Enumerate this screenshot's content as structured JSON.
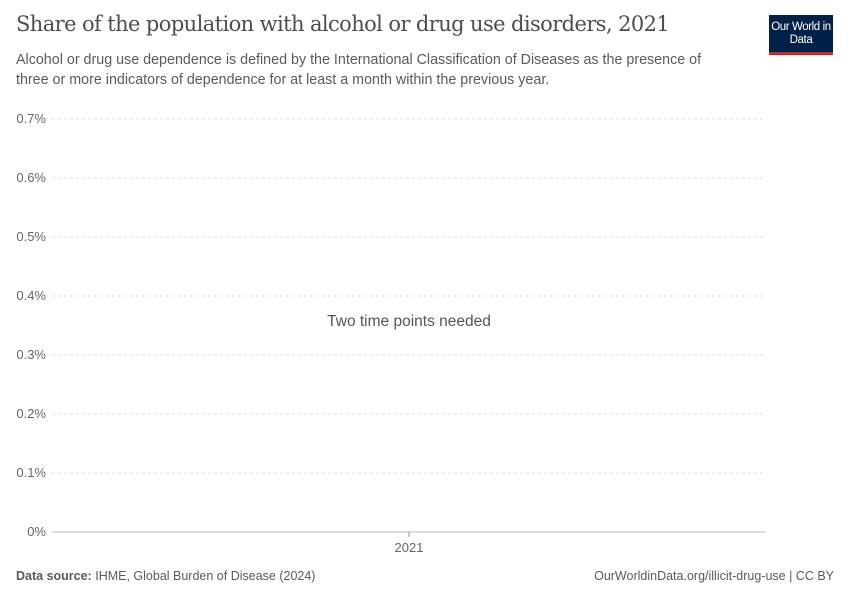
{
  "header": {
    "title": "Share of the population with alcohol or drug use disorders, 2021",
    "subtitle": "Alcohol or drug use dependence is defined by the International Classification of Diseases as the presence of three or more indicators of dependence for at least a month within the previous year.",
    "logo": "Our World in Data"
  },
  "chart_data": {
    "type": "line",
    "title": "Share of the population with alcohol or drug use disorders, 2021",
    "ylim": [
      0,
      0.7
    ],
    "yticks": [
      "0%",
      "0.1%",
      "0.2%",
      "0.3%",
      "0.4%",
      "0.5%",
      "0.6%",
      "0.7%"
    ],
    "xticks": [
      "2021"
    ],
    "grid": true,
    "series": [],
    "message": "Two time points needed"
  },
  "footer": {
    "source_label": "Data source:",
    "source": "IHME, Global Burden of Disease (2024)",
    "url": "OurWorldinData.org/illicit-drug-use | CC BY"
  },
  "colors": {
    "logo_bg": "#002147",
    "logo_accent": "#ce261e"
  }
}
